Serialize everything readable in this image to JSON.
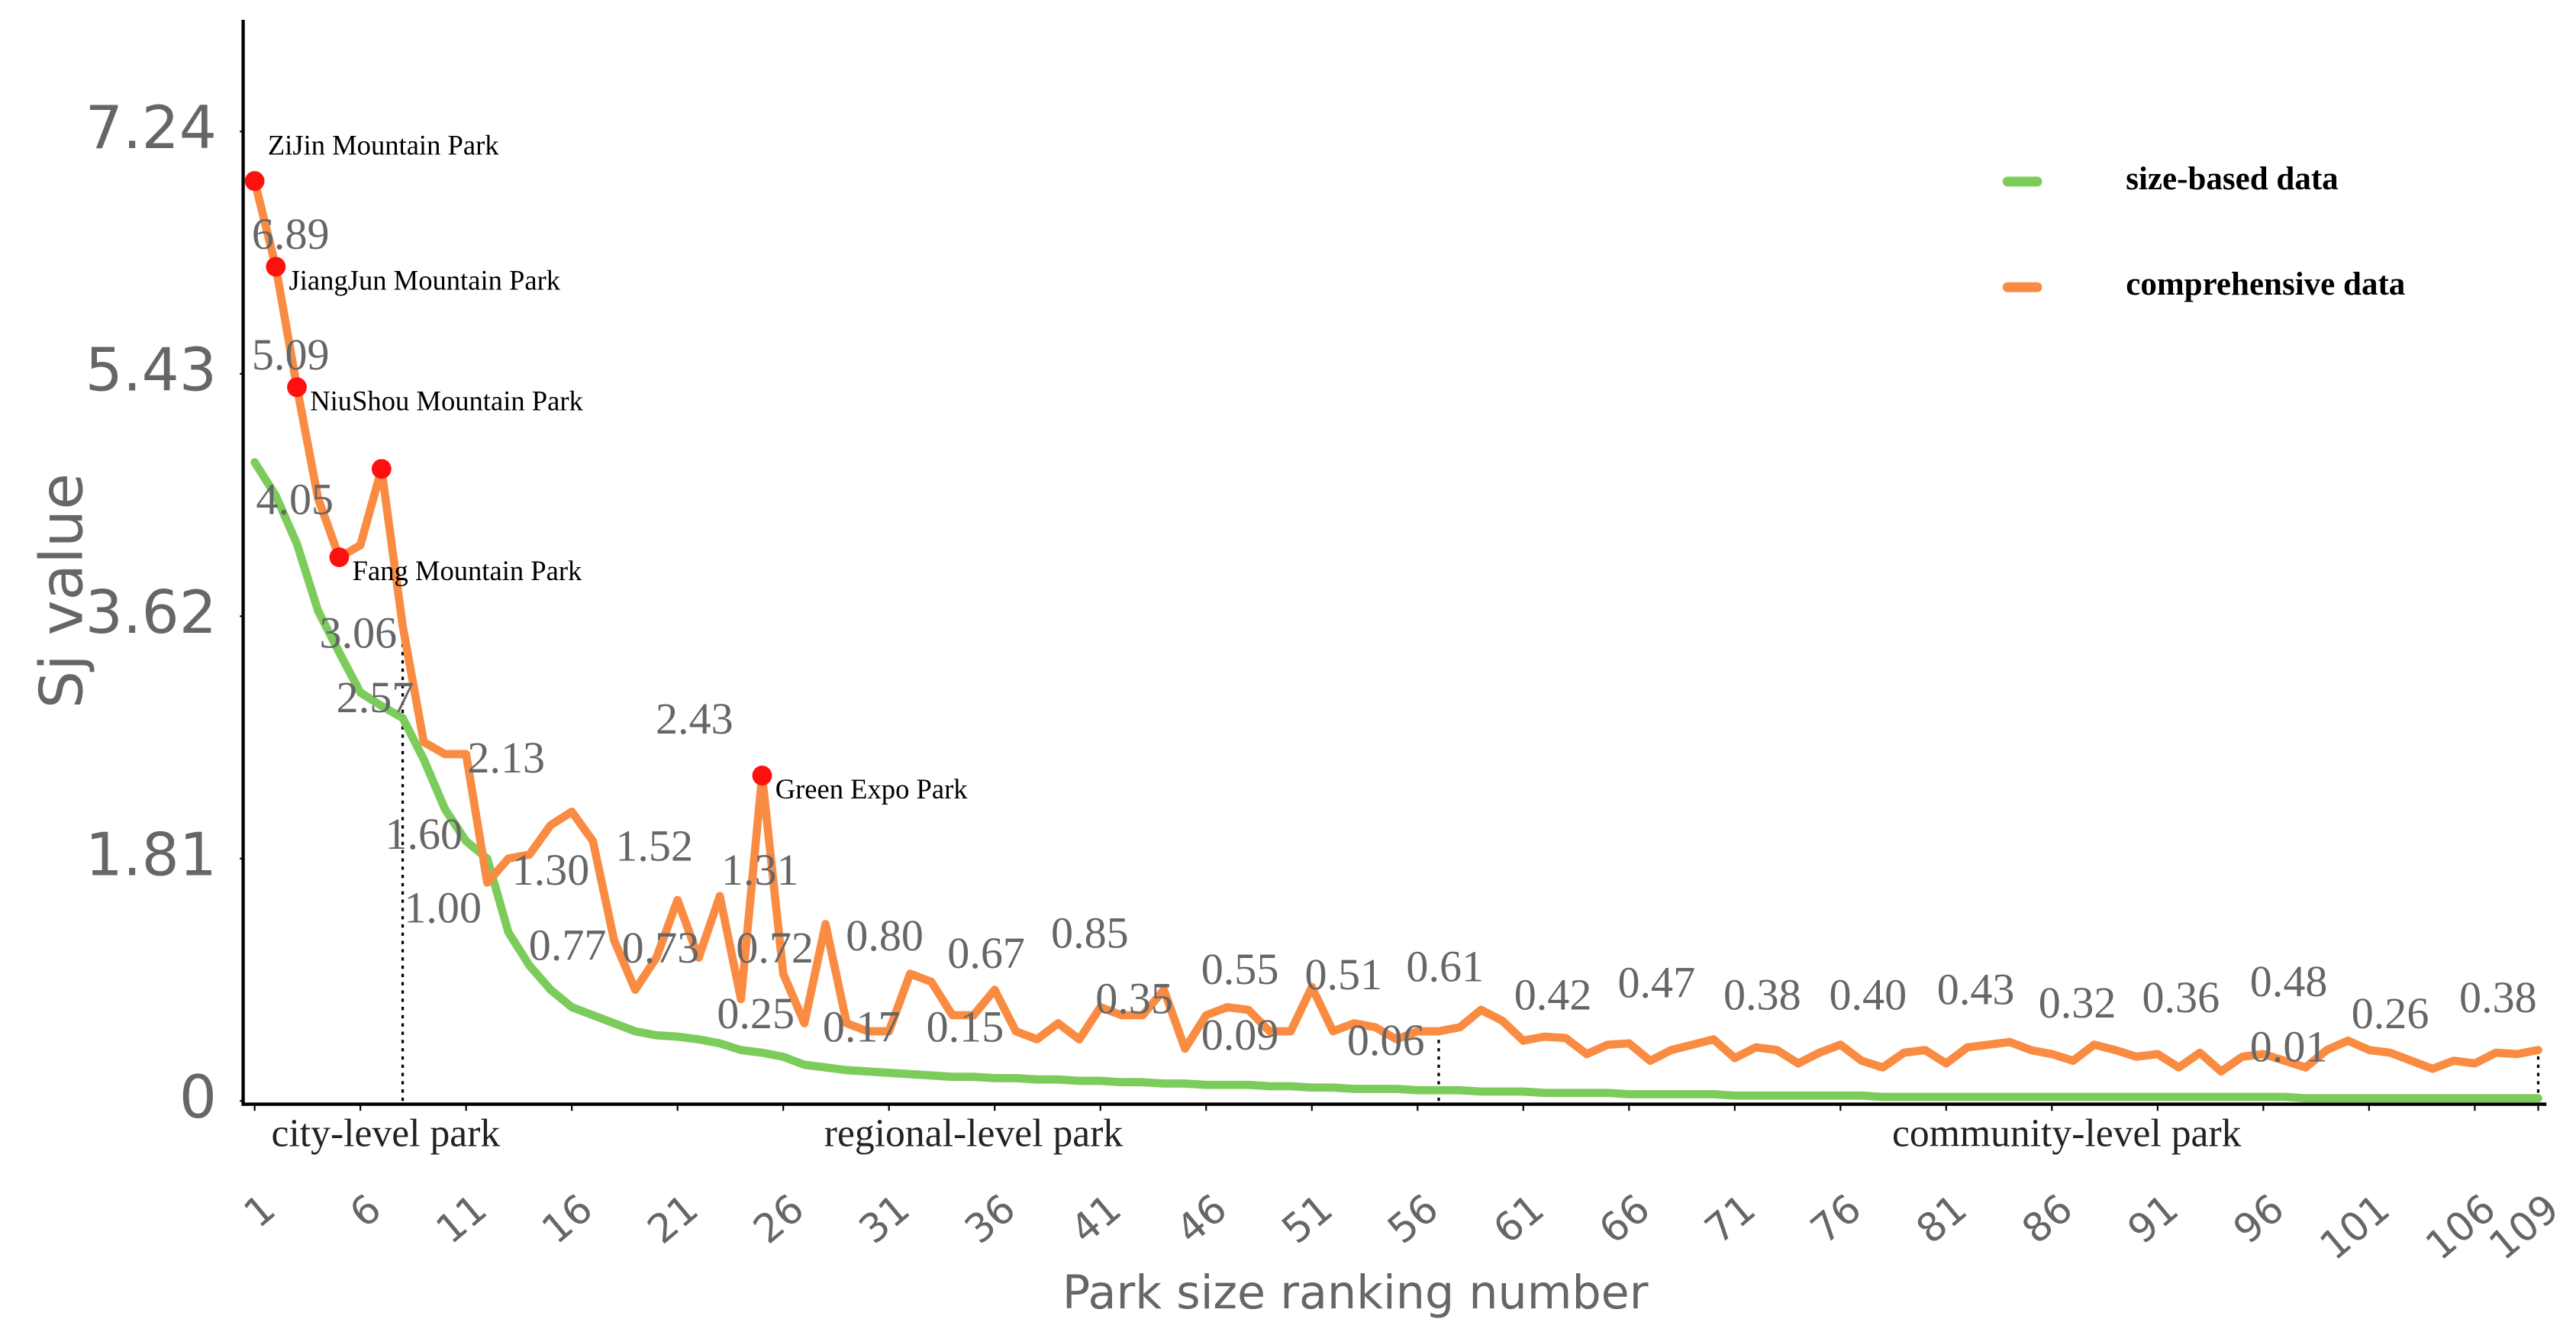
{
  "chart_data": {
    "type": "line",
    "xlabel": "Park size ranking number",
    "ylabel": "Sj value",
    "xlim": [
      1,
      109
    ],
    "xticks": [
      1,
      6,
      11,
      16,
      21,
      26,
      31,
      36,
      41,
      46,
      51,
      56,
      61,
      66,
      71,
      76,
      81,
      86,
      91,
      96,
      101,
      106,
      109
    ],
    "ylim": [
      0,
      8
    ],
    "yticks": [
      0,
      1.81,
      3.62,
      5.43,
      7.24
    ],
    "legend": "upper right",
    "x": [
      1,
      2,
      3,
      4,
      5,
      6,
      7,
      8,
      9,
      10,
      11,
      12,
      13,
      14,
      15,
      16,
      17,
      18,
      19,
      20,
      21,
      22,
      23,
      24,
      25,
      26,
      27,
      28,
      29,
      30,
      31,
      32,
      33,
      34,
      35,
      36,
      37,
      38,
      39,
      40,
      41,
      42,
      43,
      44,
      45,
      46,
      47,
      48,
      49,
      50,
      51,
      52,
      53,
      54,
      55,
      56,
      57,
      58,
      59,
      60,
      61,
      62,
      63,
      64,
      65,
      66,
      67,
      68,
      69,
      70,
      71,
      72,
      73,
      74,
      75,
      76,
      77,
      78,
      79,
      80,
      81,
      82,
      83,
      84,
      85,
      86,
      87,
      88,
      89,
      90,
      91,
      92,
      93,
      94,
      95,
      96,
      97,
      98,
      99,
      100,
      101,
      102,
      103,
      104,
      105,
      106,
      107,
      108,
      109
    ],
    "series": [
      {
        "name": "size-based data",
        "color": "#7ccc5c",
        "values": [
          4.77,
          4.52,
          4.16,
          3.66,
          3.35,
          3.05,
          2.95,
          2.86,
          2.55,
          2.18,
          1.94,
          1.81,
          1.26,
          1.01,
          0.83,
          0.7,
          0.64,
          0.58,
          0.52,
          0.49,
          0.48,
          0.46,
          0.43,
          0.38,
          0.36,
          0.33,
          0.27,
          0.25,
          0.23,
          0.22,
          0.21,
          0.2,
          0.19,
          0.18,
          0.18,
          0.17,
          0.17,
          0.16,
          0.16,
          0.15,
          0.15,
          0.14,
          0.14,
          0.13,
          0.13,
          0.12,
          0.12,
          0.12,
          0.11,
          0.11,
          0.1,
          0.1,
          0.09,
          0.09,
          0.09,
          0.08,
          0.08,
          0.08,
          0.07,
          0.07,
          0.07,
          0.06,
          0.06,
          0.06,
          0.06,
          0.05,
          0.05,
          0.05,
          0.05,
          0.05,
          0.04,
          0.04,
          0.04,
          0.04,
          0.04,
          0.04,
          0.04,
          0.03,
          0.03,
          0.03,
          0.03,
          0.03,
          0.03,
          0.03,
          0.03,
          0.03,
          0.03,
          0.03,
          0.03,
          0.03,
          0.03,
          0.03,
          0.03,
          0.03,
          0.03,
          0.03,
          0.03,
          0.02,
          0.02,
          0.02,
          0.02,
          0.02,
          0.02,
          0.02,
          0.02,
          0.02,
          0.02,
          0.02,
          0.02
        ]
      },
      {
        "name": "comprehensive data",
        "color": "#f98c42",
        "values": [
          6.87,
          6.23,
          5.33,
          4.5,
          4.06,
          4.15,
          4.72,
          3.55,
          2.68,
          2.59,
          2.59,
          1.63,
          1.81,
          1.84,
          2.06,
          2.16,
          1.94,
          1.2,
          0.83,
          1.07,
          1.5,
          1.07,
          1.53,
          0.76,
          2.43,
          0.95,
          0.58,
          1.32,
          0.58,
          0.52,
          0.52,
          0.95,
          0.89,
          0.64,
          0.64,
          0.83,
          0.52,
          0.46,
          0.58,
          0.46,
          0.7,
          0.64,
          0.64,
          0.83,
          0.39,
          0.64,
          0.7,
          0.68,
          0.52,
          0.52,
          0.85,
          0.52,
          0.58,
          0.55,
          0.46,
          0.52,
          0.52,
          0.55,
          0.68,
          0.6,
          0.45,
          0.48,
          0.47,
          0.35,
          0.42,
          0.43,
          0.3,
          0.38,
          0.42,
          0.46,
          0.32,
          0.4,
          0.38,
          0.28,
          0.36,
          0.42,
          0.3,
          0.25,
          0.36,
          0.38,
          0.28,
          0.4,
          0.42,
          0.44,
          0.38,
          0.35,
          0.3,
          0.42,
          0.38,
          0.33,
          0.35,
          0.25,
          0.36,
          0.22,
          0.33,
          0.35,
          0.3,
          0.25,
          0.38,
          0.45,
          0.38,
          0.36,
          0.3,
          0.24,
          0.3,
          0.28,
          0.36,
          0.35,
          0.38
        ]
      }
    ],
    "highlights": [
      {
        "x": 1,
        "label": "ZiJin Mountain Park"
      },
      {
        "x": 2,
        "label": "JiangJun Mountain Park"
      },
      {
        "x": 3,
        "label": "NiuShou Mountain Park"
      },
      {
        "x": 5,
        "label": "Fang Mountain Park"
      },
      {
        "x": 7
      },
      {
        "x": 25,
        "label": "Green Expo Park"
      }
    ],
    "annotations": [
      {
        "text": "6.89",
        "x": 2.7,
        "y": 6.44
      },
      {
        "text": "5.09",
        "x": 2.7,
        "y": 5.54
      },
      {
        "text": "4.05",
        "x": 2.9,
        "y": 4.46
      },
      {
        "text": "3.06",
        "x": 5.9,
        "y": 3.46
      },
      {
        "text": "2.57",
        "x": 6.7,
        "y": 2.98
      },
      {
        "text": "2.13",
        "x": 12.9,
        "y": 2.53
      },
      {
        "text": "2.43",
        "x": 21.8,
        "y": 2.82
      },
      {
        "text": "1.60",
        "x": 9,
        "y": 1.96
      },
      {
        "text": "1.00",
        "x": 9.9,
        "y": 1.41
      },
      {
        "text": "1.30",
        "x": 15,
        "y": 1.69
      },
      {
        "text": "1.52",
        "x": 19.9,
        "y": 1.87
      },
      {
        "text": "1.31",
        "x": 24.9,
        "y": 1.69
      },
      {
        "text": "0.77",
        "x": 15.8,
        "y": 1.13
      },
      {
        "text": "0.73",
        "x": 20.2,
        "y": 1.11
      },
      {
        "text": "0.72",
        "x": 25.6,
        "y": 1.11
      },
      {
        "text": "0.25",
        "x": 24.7,
        "y": 0.62
      },
      {
        "text": "0.80",
        "x": 30.8,
        "y": 1.2
      },
      {
        "text": "0.17",
        "x": 29.7,
        "y": 0.52
      },
      {
        "text": "0.15",
        "x": 34.6,
        "y": 0.52
      },
      {
        "text": "0.67",
        "x": 35.6,
        "y": 1.07
      },
      {
        "text": "0.85",
        "x": 40.5,
        "y": 1.22
      },
      {
        "text": "0.35",
        "x": 42.6,
        "y": 0.73
      },
      {
        "text": "0.55",
        "x": 47.6,
        "y": 0.95
      },
      {
        "text": "0.09",
        "x": 47.6,
        "y": 0.46
      },
      {
        "text": "0.51",
        "x": 52.5,
        "y": 0.91
      },
      {
        "text": "0.06",
        "x": 54.5,
        "y": 0.42
      },
      {
        "text": "0.61",
        "x": 57.3,
        "y": 0.97
      },
      {
        "text": "0.42",
        "x": 62.4,
        "y": 0.76
      },
      {
        "text": "0.47",
        "x": 67.3,
        "y": 0.85
      },
      {
        "text": "0.38",
        "x": 72.3,
        "y": 0.76
      },
      {
        "text": "0.40",
        "x": 77.3,
        "y": 0.76
      },
      {
        "text": "0.43",
        "x": 82.4,
        "y": 0.8
      },
      {
        "text": "0.32",
        "x": 87.2,
        "y": 0.7
      },
      {
        "text": "0.36",
        "x": 92.1,
        "y": 0.74
      },
      {
        "text": "0.48",
        "x": 97.2,
        "y": 0.86
      },
      {
        "text": "0.01",
        "x": 97.2,
        "y": 0.37
      },
      {
        "text": "0.26",
        "x": 102,
        "y": 0.62
      },
      {
        "text": "0.38",
        "x": 107.1,
        "y": 0.74
      }
    ],
    "sections": [
      {
        "label": "city-level park",
        "x": 7.2
      },
      {
        "label": "regional-level park",
        "x": 35
      },
      {
        "label": "community-level park",
        "x": 86.7
      }
    ],
    "dividers": [
      8,
      57,
      109
    ]
  }
}
